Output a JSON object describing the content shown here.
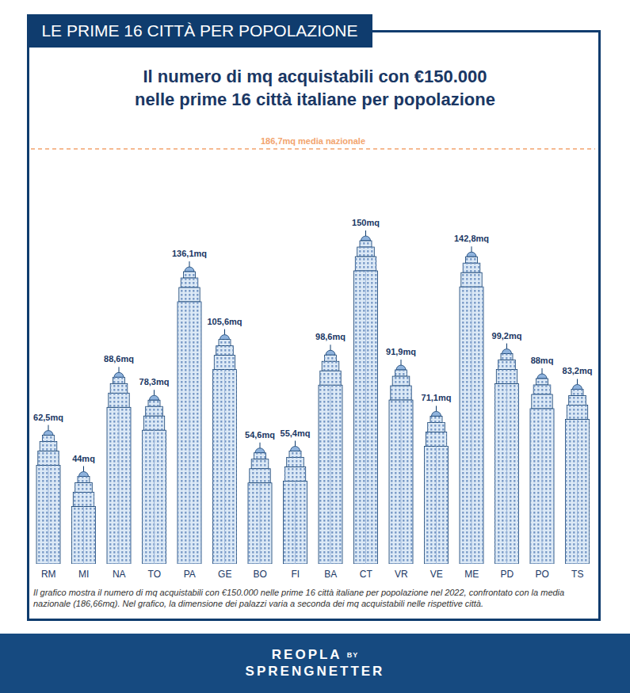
{
  "chart_data": {
    "type": "bar",
    "header": "LE PRIME 16 CITTÀ PER POPOLAZIONE",
    "title": "Il numero di mq acquistabili con €150.000 nelle prime 16 città italiane per popolazione",
    "categories": [
      "RM",
      "MI",
      "NA",
      "TO",
      "PA",
      "GE",
      "BO",
      "FI",
      "BA",
      "CT",
      "VR",
      "VE",
      "ME",
      "PD",
      "PO",
      "TS"
    ],
    "values": [
      62.5,
      44,
      88.6,
      78.3,
      136.1,
      105.6,
      54.6,
      55.4,
      98.6,
      150,
      91.9,
      71.1,
      142.8,
      99.2,
      88,
      83.2
    ],
    "value_labels": [
      "62,5mq",
      "44mq",
      "88,6mq",
      "78,3mq",
      "136,1mq",
      "105,6mq",
      "54,6mq",
      "55,4mq",
      "98,6mq",
      "150mq",
      "91,9mq",
      "71,1mq",
      "142,8mq",
      "99,2mq",
      "88mq",
      "83,2mq"
    ],
    "data_labels": true,
    "color": "#dce9f6",
    "ylim": [
      0,
      186.7
    ],
    "tick_labels": "x",
    "reference_line": {
      "value": 186.7,
      "label": "186,7mq media nazionale",
      "color": "#f2a46e"
    },
    "note": "Il grafico mostra il numero di mq acquistabili con €150.000 nelle prime 16 città italiane per popolazione nel 2022, confrontato con la media nazionale (186,66mq). Nel grafico, la dimensione dei palazzi varia a seconda dei mq acquistabili nelle rispettive città.",
    "footer": {
      "brand": "REOPLA",
      "by": "BY",
      "company": "SPRENGNETTER"
    }
  }
}
